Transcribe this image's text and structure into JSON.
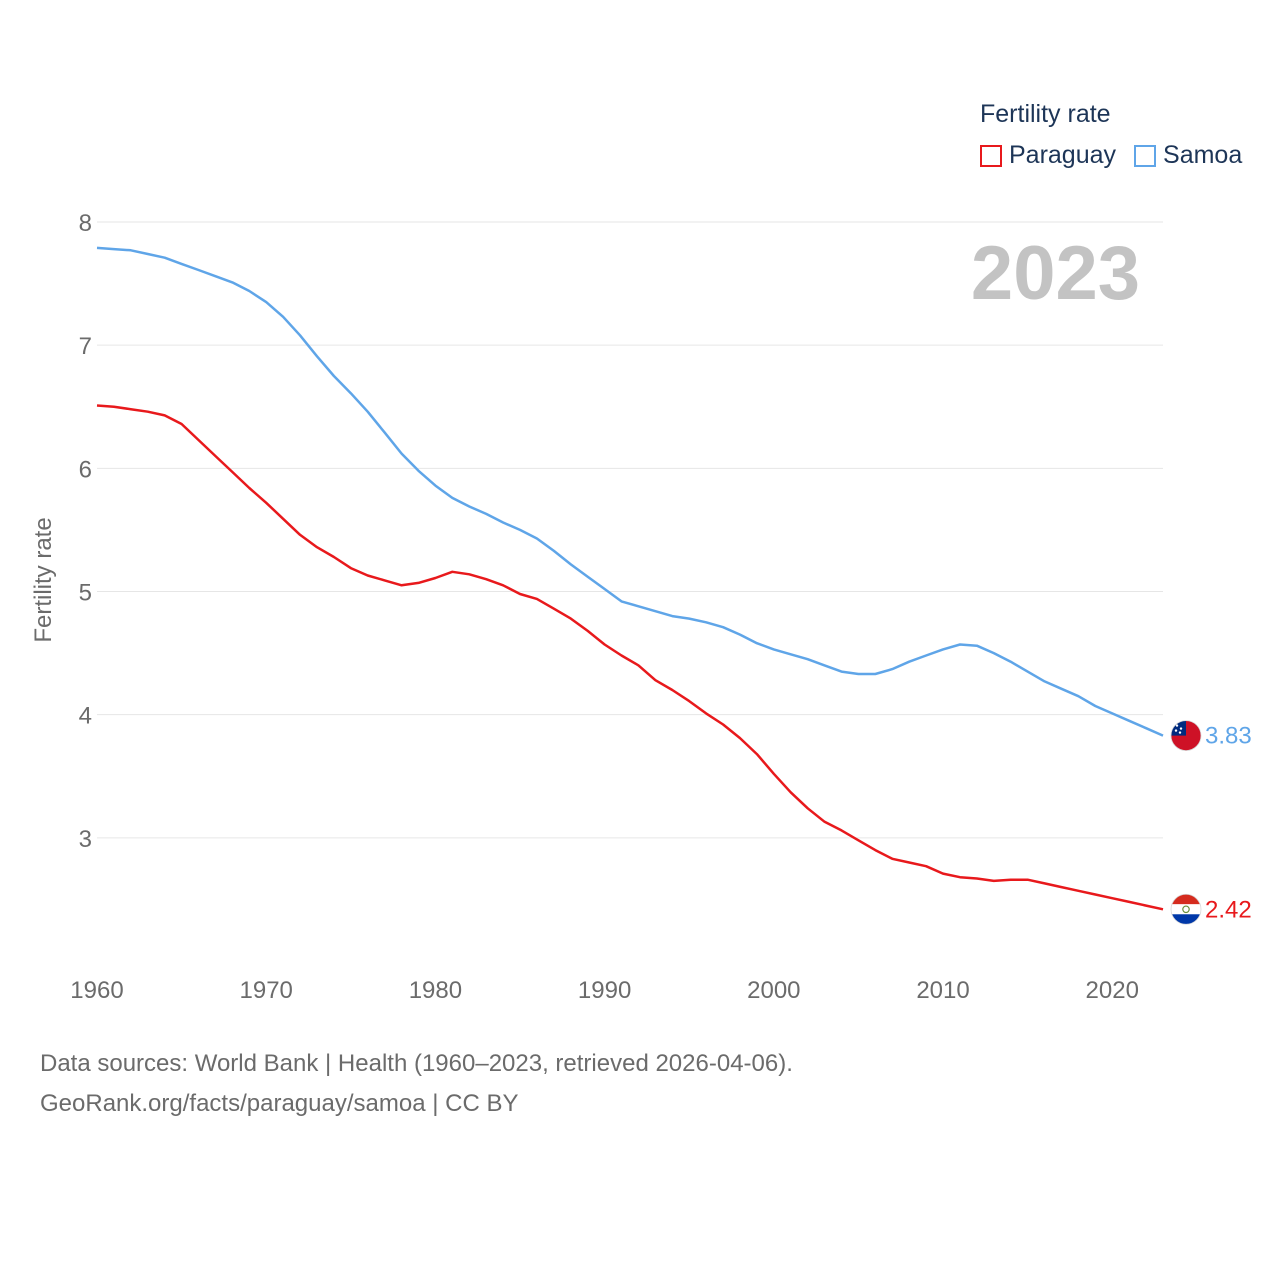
{
  "legend": {
    "title": "Fertility rate",
    "items": [
      {
        "name": "Paraguay",
        "color": "#e8191c"
      },
      {
        "name": "Samoa",
        "color": "#5fa5e8"
      }
    ]
  },
  "year_label": "2023",
  "source": {
    "line1": "Data sources: World Bank | Health (1960–2023, retrieved 2026-04-06).",
    "line2": "GeoRank.org/facts/paraguay/samoa | CC BY"
  },
  "chart_data": {
    "type": "line",
    "title": "Fertility rate",
    "xlabel": "",
    "ylabel": "Fertility rate",
    "xlim": [
      1960,
      2023
    ],
    "ylim": [
      2,
      8
    ],
    "x_ticks": [
      1960,
      1970,
      1980,
      1990,
      2000,
      2010,
      2020
    ],
    "y_ticks": [
      3,
      4,
      5,
      6,
      7,
      8
    ],
    "grid": true,
    "legend_position": "top-right",
    "x": [
      1960,
      1961,
      1962,
      1963,
      1964,
      1965,
      1966,
      1967,
      1968,
      1969,
      1970,
      1971,
      1972,
      1973,
      1974,
      1975,
      1976,
      1977,
      1978,
      1979,
      1980,
      1981,
      1982,
      1983,
      1984,
      1985,
      1986,
      1987,
      1988,
      1989,
      1990,
      1991,
      1992,
      1993,
      1994,
      1995,
      1996,
      1997,
      1998,
      1999,
      2000,
      2001,
      2002,
      2003,
      2004,
      2005,
      2006,
      2007,
      2008,
      2009,
      2010,
      2011,
      2012,
      2013,
      2014,
      2015,
      2016,
      2017,
      2018,
      2019,
      2020,
      2021,
      2022,
      2023
    ],
    "series": [
      {
        "name": "Paraguay",
        "color": "#e8191c",
        "end_label": "2.42",
        "values": [
          6.51,
          6.5,
          6.48,
          6.46,
          6.43,
          6.36,
          6.23,
          6.1,
          5.97,
          5.84,
          5.72,
          5.59,
          5.46,
          5.36,
          5.28,
          5.19,
          5.13,
          5.09,
          5.05,
          5.07,
          5.11,
          5.16,
          5.14,
          5.1,
          5.05,
          4.98,
          4.94,
          4.86,
          4.78,
          4.68,
          4.57,
          4.48,
          4.4,
          4.28,
          4.2,
          4.11,
          4.01,
          3.92,
          3.81,
          3.68,
          3.52,
          3.37,
          3.24,
          3.13,
          3.06,
          2.98,
          2.9,
          2.83,
          2.8,
          2.77,
          2.71,
          2.68,
          2.67,
          2.65,
          2.66,
          2.66,
          2.63,
          2.6,
          2.57,
          2.54,
          2.51,
          2.48,
          2.45,
          2.42
        ]
      },
      {
        "name": "Samoa",
        "color": "#5fa5e8",
        "end_label": "3.83",
        "values": [
          7.79,
          7.78,
          7.77,
          7.74,
          7.71,
          7.66,
          7.61,
          7.56,
          7.51,
          7.44,
          7.35,
          7.23,
          7.08,
          6.91,
          6.75,
          6.61,
          6.46,
          6.29,
          6.12,
          5.98,
          5.86,
          5.76,
          5.69,
          5.63,
          5.56,
          5.5,
          5.43,
          5.33,
          5.22,
          5.12,
          5.02,
          4.92,
          4.88,
          4.84,
          4.8,
          4.78,
          4.75,
          4.71,
          4.65,
          4.58,
          4.53,
          4.49,
          4.45,
          4.4,
          4.35,
          4.33,
          4.33,
          4.37,
          4.43,
          4.48,
          4.53,
          4.57,
          4.56,
          4.5,
          4.43,
          4.35,
          4.27,
          4.21,
          4.15,
          4.07,
          4.01,
          3.95,
          3.89,
          3.83
        ]
      }
    ]
  }
}
